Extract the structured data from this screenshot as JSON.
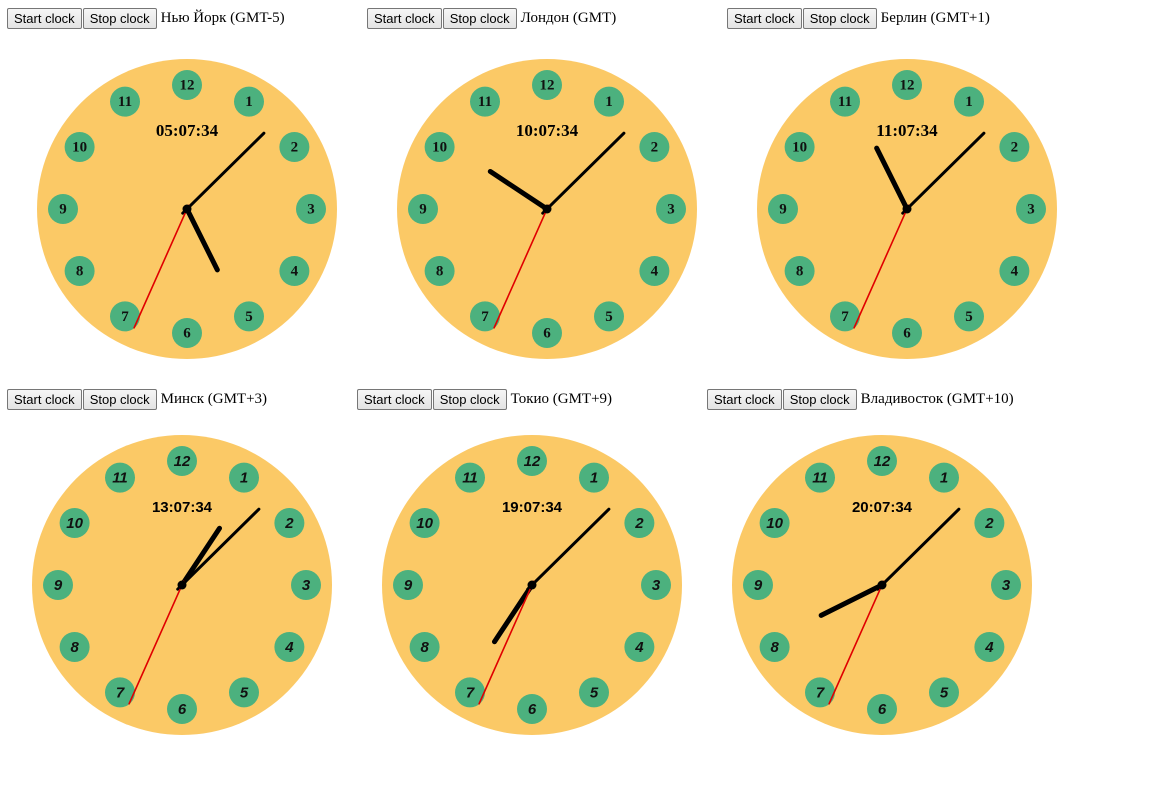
{
  "controls": {
    "start_label": "Start clock",
    "stop_label": "Stop clock"
  },
  "colors": {
    "face": "#fbc966",
    "number_circle": "#4cb17e",
    "hands": "#000000",
    "second_hand": "#e00000"
  },
  "numbers": [
    "12",
    "1",
    "2",
    "3",
    "4",
    "5",
    "6",
    "7",
    "8",
    "9",
    "10",
    "11"
  ],
  "clocks": [
    {
      "city": "Нью Йорк (GMT-5)",
      "time": "05:07:34",
      "hours": 5,
      "minutes": 7,
      "seconds": 34,
      "style": "serif"
    },
    {
      "city": "Лондон (GMT)",
      "time": "10:07:34",
      "hours": 10,
      "minutes": 7,
      "seconds": 34,
      "style": "serif"
    },
    {
      "city": "Берлин (GMT+1)",
      "time": "11:07:34",
      "hours": 11,
      "minutes": 7,
      "seconds": 34,
      "style": "serif"
    },
    {
      "city": "Минск (GMT+3)",
      "time": "13:07:34",
      "hours": 13,
      "minutes": 7,
      "seconds": 34,
      "style": "sans"
    },
    {
      "city": "Токио (GMT+9)",
      "time": "19:07:34",
      "hours": 19,
      "minutes": 7,
      "seconds": 34,
      "style": "sans"
    },
    {
      "city": "Владивосток (GMT+10)",
      "time": "20:07:34",
      "hours": 20,
      "minutes": 7,
      "seconds": 34,
      "style": "sans"
    }
  ]
}
